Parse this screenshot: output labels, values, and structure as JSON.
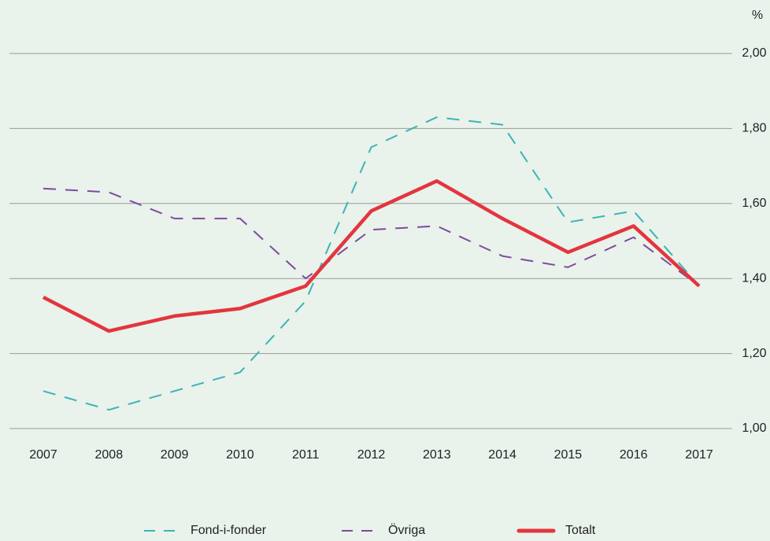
{
  "chart_data": {
    "type": "line",
    "ylabel": "%",
    "categories": [
      "2007",
      "2008",
      "2009",
      "2010",
      "2011",
      "2012",
      "2013",
      "2014",
      "2015",
      "2016",
      "2017"
    ],
    "series": [
      {
        "name": "Fond-i-fonder",
        "color": "#3cb4b4",
        "style": "dashed",
        "values": [
          1.1,
          1.05,
          1.1,
          1.15,
          1.34,
          1.75,
          1.83,
          1.81,
          1.55,
          1.58,
          1.38
        ]
      },
      {
        "name": "Övriga",
        "color": "#7d4b9c",
        "style": "dashed",
        "values": [
          1.64,
          1.63,
          1.56,
          1.56,
          1.4,
          1.53,
          1.54,
          1.46,
          1.43,
          1.51,
          1.38
        ]
      },
      {
        "name": "Totalt",
        "color": "#e3353e",
        "style": "solid",
        "values": [
          1.35,
          1.26,
          1.3,
          1.32,
          1.38,
          1.58,
          1.66,
          1.56,
          1.47,
          1.54,
          1.38
        ]
      }
    ],
    "ylim": [
      1.0,
      2.0
    ],
    "yticks": [
      {
        "value": 1.0,
        "label": "1,00"
      },
      {
        "value": 1.2,
        "label": "1,20"
      },
      {
        "value": 1.4,
        "label": "1,40"
      },
      {
        "value": 1.6,
        "label": "1,60"
      },
      {
        "value": 1.8,
        "label": "1,80"
      },
      {
        "value": 2.0,
        "label": "2,00"
      }
    ],
    "grid": true,
    "legend": "bottom"
  }
}
